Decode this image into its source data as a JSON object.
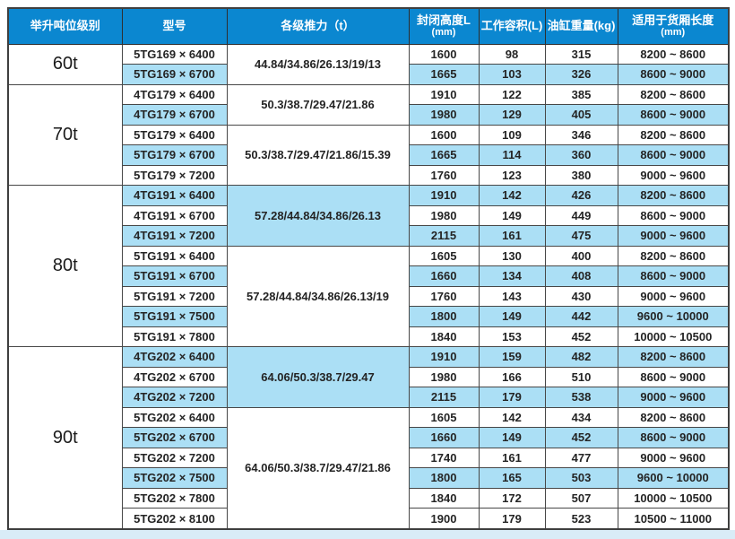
{
  "colors": {
    "header_bg": "#0b87d0",
    "header_text": "#ffffff",
    "row_shaded": "#abdff5",
    "row_plain": "#ffffff",
    "border": "#474747",
    "bottom_strip": "#d9ecf7"
  },
  "table": {
    "columns": [
      {
        "id": "tonnage",
        "label": "举升吨位级别",
        "unit": ""
      },
      {
        "id": "model",
        "label": "型号",
        "unit": ""
      },
      {
        "id": "thrust",
        "label": "各级推力（t）",
        "unit": ""
      },
      {
        "id": "closed-height",
        "label": "封闭高度L",
        "unit": "(mm)"
      },
      {
        "id": "working-volume",
        "label": "工作容积(L)",
        "unit": ""
      },
      {
        "id": "weight",
        "label": "油缸重量(kg)",
        "unit": ""
      },
      {
        "id": "box-length",
        "label": "适用于货厢长度",
        "unit": "(mm)"
      }
    ],
    "sections": [
      {
        "tonnage": "60t",
        "groups": [
          {
            "thrust": "44.84/34.86/26.13/19/13",
            "thrust_shaded": false,
            "rows": [
              {
                "model": "5TG169 × 6400",
                "closed_height": "1600",
                "working_volume": "98",
                "weight": "315",
                "box_length": "8200 ~ 8600",
                "shaded": false
              },
              {
                "model": "5TG169 × 6700",
                "closed_height": "1665",
                "working_volume": "103",
                "weight": "326",
                "box_length": "8600 ~ 9000",
                "shaded": true
              }
            ]
          }
        ]
      },
      {
        "tonnage": "70t",
        "groups": [
          {
            "thrust": "50.3/38.7/29.47/21.86",
            "thrust_shaded": false,
            "rows": [
              {
                "model": "4TG179 × 6400",
                "closed_height": "1910",
                "working_volume": "122",
                "weight": "385",
                "box_length": "8200 ~ 8600",
                "shaded": false
              },
              {
                "model": "4TG179 × 6700",
                "closed_height": "1980",
                "working_volume": "129",
                "weight": "405",
                "box_length": "8600 ~ 9000",
                "shaded": true
              }
            ]
          },
          {
            "thrust": "50.3/38.7/29.47/21.86/15.39",
            "thrust_shaded": false,
            "rows": [
              {
                "model": "5TG179 × 6400",
                "closed_height": "1600",
                "working_volume": "109",
                "weight": "346",
                "box_length": "8200 ~ 8600",
                "shaded": false
              },
              {
                "model": "5TG179 × 6700",
                "closed_height": "1665",
                "working_volume": "114",
                "weight": "360",
                "box_length": "8600 ~ 9000",
                "shaded": true
              },
              {
                "model": "5TG179 × 7200",
                "closed_height": "1760",
                "working_volume": "123",
                "weight": "380",
                "box_length": "9000 ~ 9600",
                "shaded": false
              }
            ]
          }
        ]
      },
      {
        "tonnage": "80t",
        "groups": [
          {
            "thrust": "57.28/44.84/34.86/26.13",
            "thrust_shaded": true,
            "rows": [
              {
                "model": "4TG191 × 6400",
                "closed_height": "1910",
                "working_volume": "142",
                "weight": "426",
                "box_length": "8200 ~ 8600",
                "shaded": true
              },
              {
                "model": "4TG191 × 6700",
                "closed_height": "1980",
                "working_volume": "149",
                "weight": "449",
                "box_length": "8600 ~ 9000",
                "shaded": false
              },
              {
                "model": "4TG191 × 7200",
                "closed_height": "2115",
                "working_volume": "161",
                "weight": "475",
                "box_length": "9000 ~ 9600",
                "shaded": true
              }
            ]
          },
          {
            "thrust": "57.28/44.84/34.86/26.13/19",
            "thrust_shaded": false,
            "rows": [
              {
                "model": "5TG191 × 6400",
                "closed_height": "1605",
                "working_volume": "130",
                "weight": "400",
                "box_length": "8200 ~ 8600",
                "shaded": false
              },
              {
                "model": "5TG191 × 6700",
                "closed_height": "1660",
                "working_volume": "134",
                "weight": "408",
                "box_length": "8600 ~ 9000",
                "shaded": true
              },
              {
                "model": "5TG191 × 7200",
                "closed_height": "1760",
                "working_volume": "143",
                "weight": "430",
                "box_length": "9000 ~ 9600",
                "shaded": false
              },
              {
                "model": "5TG191 × 7500",
                "closed_height": "1800",
                "working_volume": "149",
                "weight": "442",
                "box_length": "9600 ~ 10000",
                "shaded": true
              },
              {
                "model": "5TG191 × 7800",
                "closed_height": "1840",
                "working_volume": "153",
                "weight": "452",
                "box_length": "10000 ~ 10500",
                "shaded": false
              }
            ]
          }
        ]
      },
      {
        "tonnage": "90t",
        "groups": [
          {
            "thrust": "64.06/50.3/38.7/29.47",
            "thrust_shaded": true,
            "rows": [
              {
                "model": "4TG202 × 6400",
                "closed_height": "1910",
                "working_volume": "159",
                "weight": "482",
                "box_length": "8200 ~ 8600",
                "shaded": true
              },
              {
                "model": "4TG202 × 6700",
                "closed_height": "1980",
                "working_volume": "166",
                "weight": "510",
                "box_length": "8600 ~ 9000",
                "shaded": false
              },
              {
                "model": "4TG202 × 7200",
                "closed_height": "2115",
                "working_volume": "179",
                "weight": "538",
                "box_length": "9000 ~ 9600",
                "shaded": true
              }
            ]
          },
          {
            "thrust": "64.06/50.3/38.7/29.47/21.86",
            "thrust_shaded": false,
            "rows": [
              {
                "model": "5TG202 × 6400",
                "closed_height": "1605",
                "working_volume": "142",
                "weight": "434",
                "box_length": "8200 ~ 8600",
                "shaded": false
              },
              {
                "model": "5TG202 × 6700",
                "closed_height": "1660",
                "working_volume": "149",
                "weight": "452",
                "box_length": "8600 ~ 9000",
                "shaded": true
              },
              {
                "model": "5TG202 × 7200",
                "closed_height": "1740",
                "working_volume": "161",
                "weight": "477",
                "box_length": "9000 ~ 9600",
                "shaded": false
              },
              {
                "model": "5TG202 × 7500",
                "closed_height": "1800",
                "working_volume": "165",
                "weight": "503",
                "box_length": "9600 ~ 10000",
                "shaded": true
              },
              {
                "model": "5TG202 × 7800",
                "closed_height": "1840",
                "working_volume": "172",
                "weight": "507",
                "box_length": "10000 ~ 10500",
                "shaded": false
              },
              {
                "model": "5TG202 × 8100",
                "closed_height": "1900",
                "working_volume": "179",
                "weight": "523",
                "box_length": "10500 ~ 11000",
                "shaded": false
              }
            ]
          }
        ]
      }
    ]
  }
}
